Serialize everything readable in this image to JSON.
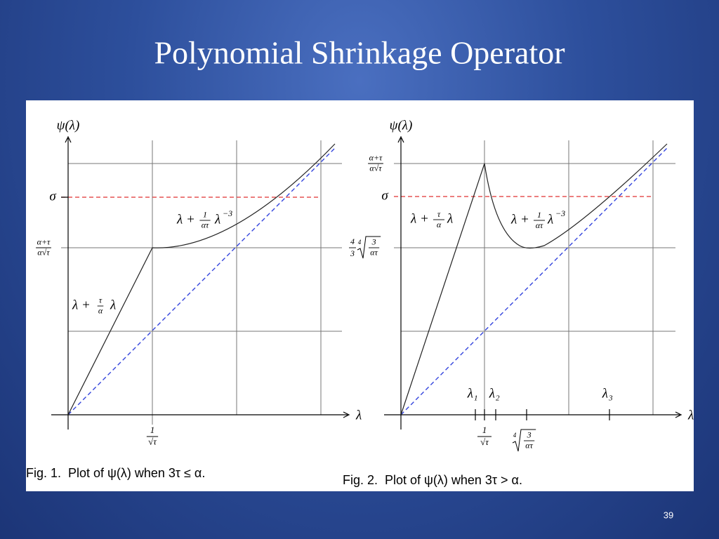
{
  "title": "Polynomial Shrinkage Operator",
  "slide_number": "39",
  "figures": [
    {
      "y_axis_label": "ψ(λ)",
      "x_axis_label": "λ",
      "sigma_label": "σ",
      "y_level_label": {
        "numerator": "α+τ",
        "denominator": "α√τ"
      },
      "x_tick_label": {
        "numerator": "1",
        "denominator": "√τ"
      },
      "linear_label": {
        "lead": "λ +",
        "numerator": "τ",
        "denominator": "α",
        "tail": "λ"
      },
      "power_label": {
        "lead": "λ +",
        "numerator": "1",
        "denominator": "ατ",
        "tail": "λ",
        "exponent": "−3"
      },
      "caption": "Fig. 1.  Plot of ψ(λ) when 3τ ≤ α."
    },
    {
      "y_axis_label": "ψ(λ)",
      "x_axis_label": "λ",
      "sigma_label": "σ",
      "y_peak_label": {
        "numerator": "α+τ",
        "denominator": "α√τ"
      },
      "y_min_label": {
        "coefficient_numerator": "4",
        "coefficient_denominator": "3",
        "root_index": "4",
        "numerator": "3",
        "denominator": "ατ"
      },
      "x_tick_label": {
        "numerator": "1",
        "denominator": "√τ"
      },
      "x_min_label": {
        "root_index": "4",
        "numerator": "3",
        "denominator": "ατ"
      },
      "lambda_labels": [
        {
          "base": "λ",
          "sub": "1"
        },
        {
          "base": "λ",
          "sub": "2"
        },
        {
          "base": "λ",
          "sub": "3"
        }
      ],
      "linear_label": {
        "lead": "λ +",
        "numerator": "τ",
        "denominator": "α",
        "tail": "λ"
      },
      "power_label": {
        "lead": "λ +",
        "numerator": "1",
        "denominator": "ατ",
        "tail": "λ",
        "exponent": "−3"
      },
      "caption": "Fig. 2.  Plot of ψ(λ) when 3τ > α."
    }
  ]
}
